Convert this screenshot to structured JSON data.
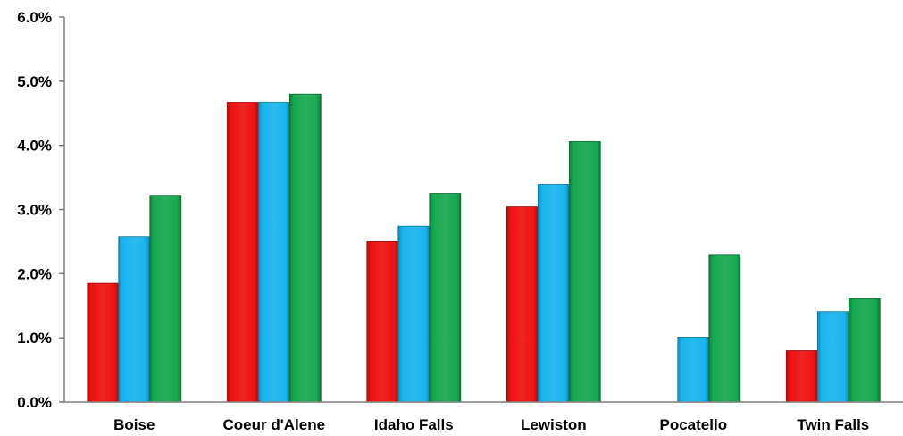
{
  "chart_data": {
    "type": "bar",
    "title": "",
    "xlabel": "",
    "ylabel": "",
    "categories": [
      "Boise",
      "Coeur d'Alene",
      "Idaho Falls",
      "Lewiston",
      "Pocatello",
      "Twin Falls"
    ],
    "series": [
      {
        "color": "#ee1111",
        "values": [
          1.85,
          4.67,
          2.5,
          3.04,
          0.0,
          0.8
        ]
      },
      {
        "color": "#19b4ee",
        "values": [
          2.58,
          4.67,
          2.74,
          3.39,
          1.01,
          1.41
        ]
      },
      {
        "color": "#16a84f",
        "values": [
          3.22,
          4.8,
          3.25,
          4.06,
          2.3,
          1.61
        ]
      }
    ],
    "ylim": [
      0,
      6
    ],
    "yticks": [
      0,
      1,
      2,
      3,
      4,
      5,
      6
    ],
    "ytick_labels": [
      "0.0%",
      "1.0%",
      "2.0%",
      "3.0%",
      "4.0%",
      "5.0%",
      "6.0%"
    ],
    "grid": false,
    "legend": "none"
  }
}
